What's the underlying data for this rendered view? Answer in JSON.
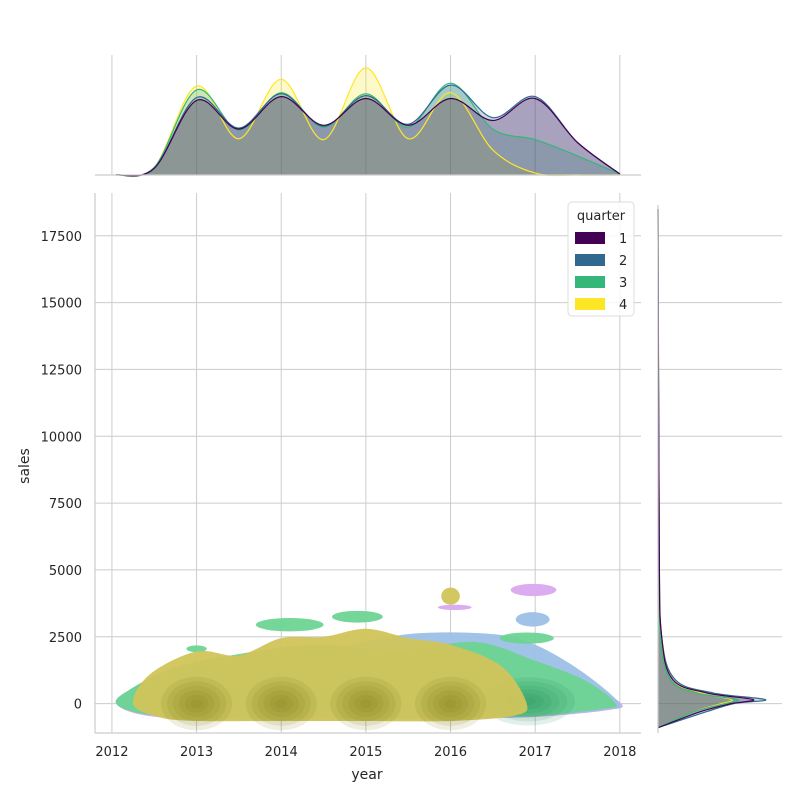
{
  "chart_data": {
    "type": "kde-jointplot",
    "title": "",
    "xlabel": "year",
    "ylabel": "sales",
    "xlim": [
      2011.8,
      2018.25
    ],
    "ylim": [
      -1100,
      19100
    ],
    "xticks": [
      2012,
      2013,
      2014,
      2015,
      2016,
      2017,
      2018
    ],
    "yticks": [
      0,
      2500,
      5000,
      7500,
      10000,
      12500,
      15000,
      17500
    ],
    "grid": true,
    "legend": {
      "title": "quarter",
      "placement": "top-right"
    },
    "series": [
      {
        "name": "1",
        "color": "#440154",
        "fill": "#d9a9ef",
        "year_density": [
          [
            2012.05,
            0.0
          ],
          [
            2012.5,
            0.07
          ],
          [
            2013.0,
            0.78
          ],
          [
            2013.5,
            0.48
          ],
          [
            2014.0,
            0.82
          ],
          [
            2014.5,
            0.52
          ],
          [
            2015.0,
            0.8
          ],
          [
            2015.5,
            0.52
          ],
          [
            2016.0,
            0.8
          ],
          [
            2016.5,
            0.57
          ],
          [
            2017.0,
            0.8
          ],
          [
            2017.5,
            0.34
          ],
          [
            2018.0,
            0.01
          ]
        ],
        "sales_density": [
          [
            -900,
            0.0
          ],
          [
            -300,
            0.35
          ],
          [
            0,
            0.6
          ],
          [
            150,
            0.78
          ],
          [
            400,
            0.4
          ],
          [
            900,
            0.12
          ],
          [
            2500,
            0.03
          ],
          [
            6000,
            0.01
          ],
          [
            18500,
            0.0
          ]
        ]
      },
      {
        "name": "2",
        "color": "#31688e",
        "fill": "#9cc0e6",
        "year_density": [
          [
            2012.05,
            0.0
          ],
          [
            2012.5,
            0.07
          ],
          [
            2013.0,
            0.81
          ],
          [
            2013.5,
            0.49
          ],
          [
            2014.0,
            0.85
          ],
          [
            2014.5,
            0.51
          ],
          [
            2015.0,
            0.83
          ],
          [
            2015.5,
            0.53
          ],
          [
            2016.0,
            0.94
          ],
          [
            2016.5,
            0.6
          ],
          [
            2017.0,
            0.82
          ],
          [
            2017.5,
            0.34
          ],
          [
            2018.0,
            0.01
          ]
        ],
        "sales_density": [
          [
            -900,
            0.0
          ],
          [
            -300,
            0.4
          ],
          [
            0,
            0.62
          ],
          [
            150,
            0.88
          ],
          [
            400,
            0.45
          ],
          [
            900,
            0.14
          ],
          [
            2500,
            0.03
          ],
          [
            6000,
            0.01
          ],
          [
            18500,
            0.0
          ]
        ]
      },
      {
        "name": "3",
        "color": "#35b779",
        "fill": "#6dd494",
        "year_density": [
          [
            2012.05,
            0.0
          ],
          [
            2012.5,
            0.08
          ],
          [
            2013.0,
            0.89
          ],
          [
            2013.5,
            0.47
          ],
          [
            2014.0,
            0.86
          ],
          [
            2014.5,
            0.5
          ],
          [
            2015.0,
            0.85
          ],
          [
            2015.5,
            0.5
          ],
          [
            2016.0,
            0.96
          ],
          [
            2016.5,
            0.48
          ],
          [
            2017.0,
            0.37
          ],
          [
            2017.5,
            0.2
          ],
          [
            2018.0,
            0.01
          ]
        ],
        "sales_density": [
          [
            -900,
            0.0
          ],
          [
            -300,
            0.3
          ],
          [
            0,
            0.55
          ],
          [
            150,
            0.65
          ],
          [
            400,
            0.32
          ],
          [
            900,
            0.1
          ],
          [
            2500,
            0.02
          ],
          [
            6000,
            0.01
          ],
          [
            18500,
            0.0
          ]
        ]
      },
      {
        "name": "4",
        "color": "#fde725",
        "fill": "#d1c45a",
        "year_density": [
          [
            2012.05,
            0.0
          ],
          [
            2012.5,
            0.08
          ],
          [
            2013.0,
            0.93
          ],
          [
            2013.5,
            0.38
          ],
          [
            2014.0,
            1.0
          ],
          [
            2014.5,
            0.37
          ],
          [
            2015.0,
            1.12
          ],
          [
            2015.5,
            0.38
          ],
          [
            2016.0,
            0.86
          ],
          [
            2016.5,
            0.26
          ],
          [
            2017.0,
            0.02
          ],
          [
            2017.5,
            0.0
          ],
          [
            2018.0,
            0.0
          ]
        ],
        "sales_density": [
          [
            -900,
            0.0
          ],
          [
            -300,
            0.3
          ],
          [
            0,
            0.52
          ],
          [
            150,
            0.6
          ],
          [
            400,
            0.35
          ],
          [
            900,
            0.12
          ],
          [
            2500,
            0.02
          ],
          [
            6000,
            0.01
          ],
          [
            18500,
            0.0
          ]
        ]
      }
    ],
    "joint_regions": [
      {
        "series": "1",
        "kind": "body",
        "points": [
          [
            2012.05,
            0
          ],
          [
            2012.35,
            -420
          ],
          [
            2013.0,
            -600
          ],
          [
            2014.0,
            -600
          ],
          [
            2015.0,
            -600
          ],
          [
            2016.0,
            -560
          ],
          [
            2017.0,
            -500
          ],
          [
            2017.85,
            -250
          ],
          [
            2018.02,
            0
          ],
          [
            2017.6,
            700
          ],
          [
            2017.0,
            1200
          ],
          [
            2016.3,
            1450
          ],
          [
            2015.3,
            1700
          ],
          [
            2014.3,
            1700
          ],
          [
            2013.5,
            1600
          ],
          [
            2012.7,
            1250
          ],
          [
            2012.2,
            500
          ]
        ]
      },
      {
        "series": "1",
        "kind": "blob",
        "cx": 2016.98,
        "cy": 4250,
        "rx": 0.27,
        "ry": 230
      },
      {
        "series": "1",
        "kind": "blob",
        "cx": 2016.05,
        "cy": 3600,
        "rx": 0.2,
        "ry": 100
      },
      {
        "series": "2",
        "kind": "body",
        "points": [
          [
            2012.05,
            0
          ],
          [
            2012.35,
            -380
          ],
          [
            2013.0,
            -560
          ],
          [
            2014.0,
            -560
          ],
          [
            2015.0,
            -560
          ],
          [
            2016.0,
            -530
          ],
          [
            2017.0,
            -470
          ],
          [
            2017.85,
            -230
          ],
          [
            2018.0,
            0
          ],
          [
            2017.55,
            1200
          ],
          [
            2017.0,
            2200
          ],
          [
            2016.5,
            2600
          ],
          [
            2015.5,
            2600
          ],
          [
            2014.5,
            2000
          ],
          [
            2013.5,
            1700
          ],
          [
            2012.7,
            1200
          ],
          [
            2012.2,
            500
          ]
        ]
      },
      {
        "series": "2",
        "kind": "blob",
        "cx": 2016.97,
        "cy": 3150,
        "rx": 0.2,
        "ry": 270
      },
      {
        "series": "3",
        "kind": "body",
        "points": [
          [
            2012.05,
            0
          ],
          [
            2012.35,
            -380
          ],
          [
            2013.0,
            -540
          ],
          [
            2014.0,
            -540
          ],
          [
            2015.0,
            -540
          ],
          [
            2016.0,
            -520
          ],
          [
            2017.0,
            -450
          ],
          [
            2017.8,
            -200
          ],
          [
            2017.95,
            0
          ],
          [
            2017.6,
            850
          ],
          [
            2017.0,
            1600
          ],
          [
            2016.3,
            2300
          ],
          [
            2015.4,
            2000
          ],
          [
            2014.4,
            2200
          ],
          [
            2013.4,
            1800
          ],
          [
            2012.7,
            1300
          ],
          [
            2012.2,
            500
          ]
        ]
      },
      {
        "series": "3",
        "kind": "blob",
        "cx": 2014.1,
        "cy": 2950,
        "rx": 0.4,
        "ry": 250
      },
      {
        "series": "3",
        "kind": "blob",
        "cx": 2014.9,
        "cy": 3250,
        "rx": 0.3,
        "ry": 220
      },
      {
        "series": "3",
        "kind": "blob",
        "cx": 2016.9,
        "cy": 2450,
        "rx": 0.32,
        "ry": 210
      },
      {
        "series": "3",
        "kind": "blob",
        "cx": 2013.0,
        "cy": 2050,
        "rx": 0.12,
        "ry": 130
      },
      {
        "series": "4",
        "kind": "body",
        "points": [
          [
            2012.25,
            0
          ],
          [
            2012.55,
            -500
          ],
          [
            2013.0,
            -650
          ],
          [
            2014.0,
            -650
          ],
          [
            2015.0,
            -650
          ],
          [
            2016.0,
            -650
          ],
          [
            2016.75,
            -450
          ],
          [
            2016.9,
            0
          ],
          [
            2016.6,
            1400
          ],
          [
            2016.0,
            2200
          ],
          [
            2015.5,
            2450
          ],
          [
            2015.0,
            2800
          ],
          [
            2014.5,
            2500
          ],
          [
            2014.0,
            2450
          ],
          [
            2013.5,
            1800
          ],
          [
            2013.0,
            1950
          ],
          [
            2012.45,
            1100
          ]
        ]
      },
      {
        "series": "4",
        "kind": "blob",
        "cx": 2016.0,
        "cy": 4020,
        "rx": 0.11,
        "ry": 320
      }
    ],
    "joint_peaks": [
      {
        "series": "3",
        "cx": 2016.92,
        "cy": 80,
        "rx": 0.55,
        "ry": 900
      },
      {
        "series": "4",
        "cx": 2013.0,
        "cy": 0,
        "rx": 0.42,
        "ry": 1000
      },
      {
        "series": "4",
        "cx": 2014.0,
        "cy": 0,
        "rx": 0.42,
        "ry": 1000
      },
      {
        "series": "4",
        "cx": 2015.0,
        "cy": 0,
        "rx": 0.42,
        "ry": 1000
      },
      {
        "series": "4",
        "cx": 2016.0,
        "cy": 0,
        "rx": 0.42,
        "ry": 1000
      }
    ]
  }
}
